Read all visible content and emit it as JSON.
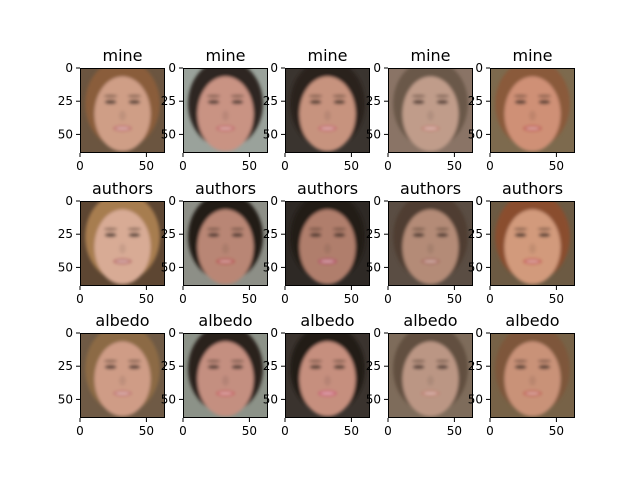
{
  "figure": {
    "rows": [
      {
        "title": "mine"
      },
      {
        "title": "authors"
      },
      {
        "title": "albedo"
      }
    ],
    "columns": 5
  },
  "chart_data": {
    "type": "image_grid",
    "grid": {
      "rows": 3,
      "cols": 5
    },
    "axes": {
      "x_ticks": [
        0,
        50
      ],
      "y_ticks": [
        0,
        25,
        50
      ],
      "xlim": [
        0,
        64
      ],
      "ylim": [
        64,
        0
      ]
    },
    "panels": [
      {
        "row": 0,
        "col": 0,
        "title": "mine",
        "face": {
          "skin": "#cf9e86",
          "hair": "#8a5d3a",
          "bg": "#6b5540",
          "lip": "#c07070"
        }
      },
      {
        "row": 0,
        "col": 1,
        "title": "mine",
        "face": {
          "skin": "#c99383",
          "hair": "#2d2620",
          "bg": "#9aa29b",
          "lip": "#c26a6a"
        }
      },
      {
        "row": 0,
        "col": 2,
        "title": "mine",
        "face": {
          "skin": "#c7937e",
          "hair": "#2a221d",
          "bg": "#3a342f",
          "lip": "#c46b70"
        }
      },
      {
        "row": 0,
        "col": 3,
        "title": "mine",
        "face": {
          "skin": "#c09c8a",
          "hair": "#6b5849",
          "bg": "#8a7466",
          "lip": "#c18276"
        }
      },
      {
        "row": 0,
        "col": 4,
        "title": "mine",
        "face": {
          "skin": "#cf9076",
          "hair": "#8a5a3a",
          "bg": "#7d6a4e",
          "lip": "#c05a55"
        }
      },
      {
        "row": 1,
        "col": 0,
        "title": "authors",
        "face": {
          "skin": "#d8ab95",
          "hair": "#a77d4f",
          "bg": "#5d4632",
          "lip": "#b76a69"
        }
      },
      {
        "row": 1,
        "col": 1,
        "title": "authors",
        "face": {
          "skin": "#b98675",
          "hair": "#201a17",
          "bg": "#8d8f87",
          "lip": "#b5504f"
        }
      },
      {
        "row": 1,
        "col": 2,
        "title": "authors",
        "face": {
          "skin": "#b07e6c",
          "hair": "#231c18",
          "bg": "#2e2925",
          "lip": "#b24f67"
        }
      },
      {
        "row": 1,
        "col": 3,
        "title": "authors",
        "face": {
          "skin": "#b48b77",
          "hair": "#4f3c30",
          "bg": "#5a4d43",
          "lip": "#a86a60"
        }
      },
      {
        "row": 1,
        "col": 4,
        "title": "authors",
        "face": {
          "skin": "#d29a7b",
          "hair": "#8a4e2d",
          "bg": "#6c5a43",
          "lip": "#c55a56"
        }
      },
      {
        "row": 2,
        "col": 0,
        "title": "albedo",
        "face": {
          "skin": "#cf9c86",
          "hair": "#8c6a45",
          "bg": "#6f5a45",
          "lip": "#c17573"
        }
      },
      {
        "row": 2,
        "col": 1,
        "title": "albedo",
        "face": {
          "skin": "#c48f80",
          "hair": "#2b231f",
          "bg": "#8c9288",
          "lip": "#c45f62"
        }
      },
      {
        "row": 2,
        "col": 2,
        "title": "albedo",
        "face": {
          "skin": "#c68f7e",
          "hair": "#221c19",
          "bg": "#3a332e",
          "lip": "#c85a72"
        }
      },
      {
        "row": 2,
        "col": 3,
        "title": "albedo",
        "face": {
          "skin": "#bb9684",
          "hair": "#62503f",
          "bg": "#7e6c5b",
          "lip": "#bd7f72"
        }
      },
      {
        "row": 2,
        "col": 4,
        "title": "albedo",
        "face": {
          "skin": "#c99278",
          "hair": "#7e563a",
          "bg": "#776247",
          "lip": "#c06055"
        }
      }
    ]
  }
}
